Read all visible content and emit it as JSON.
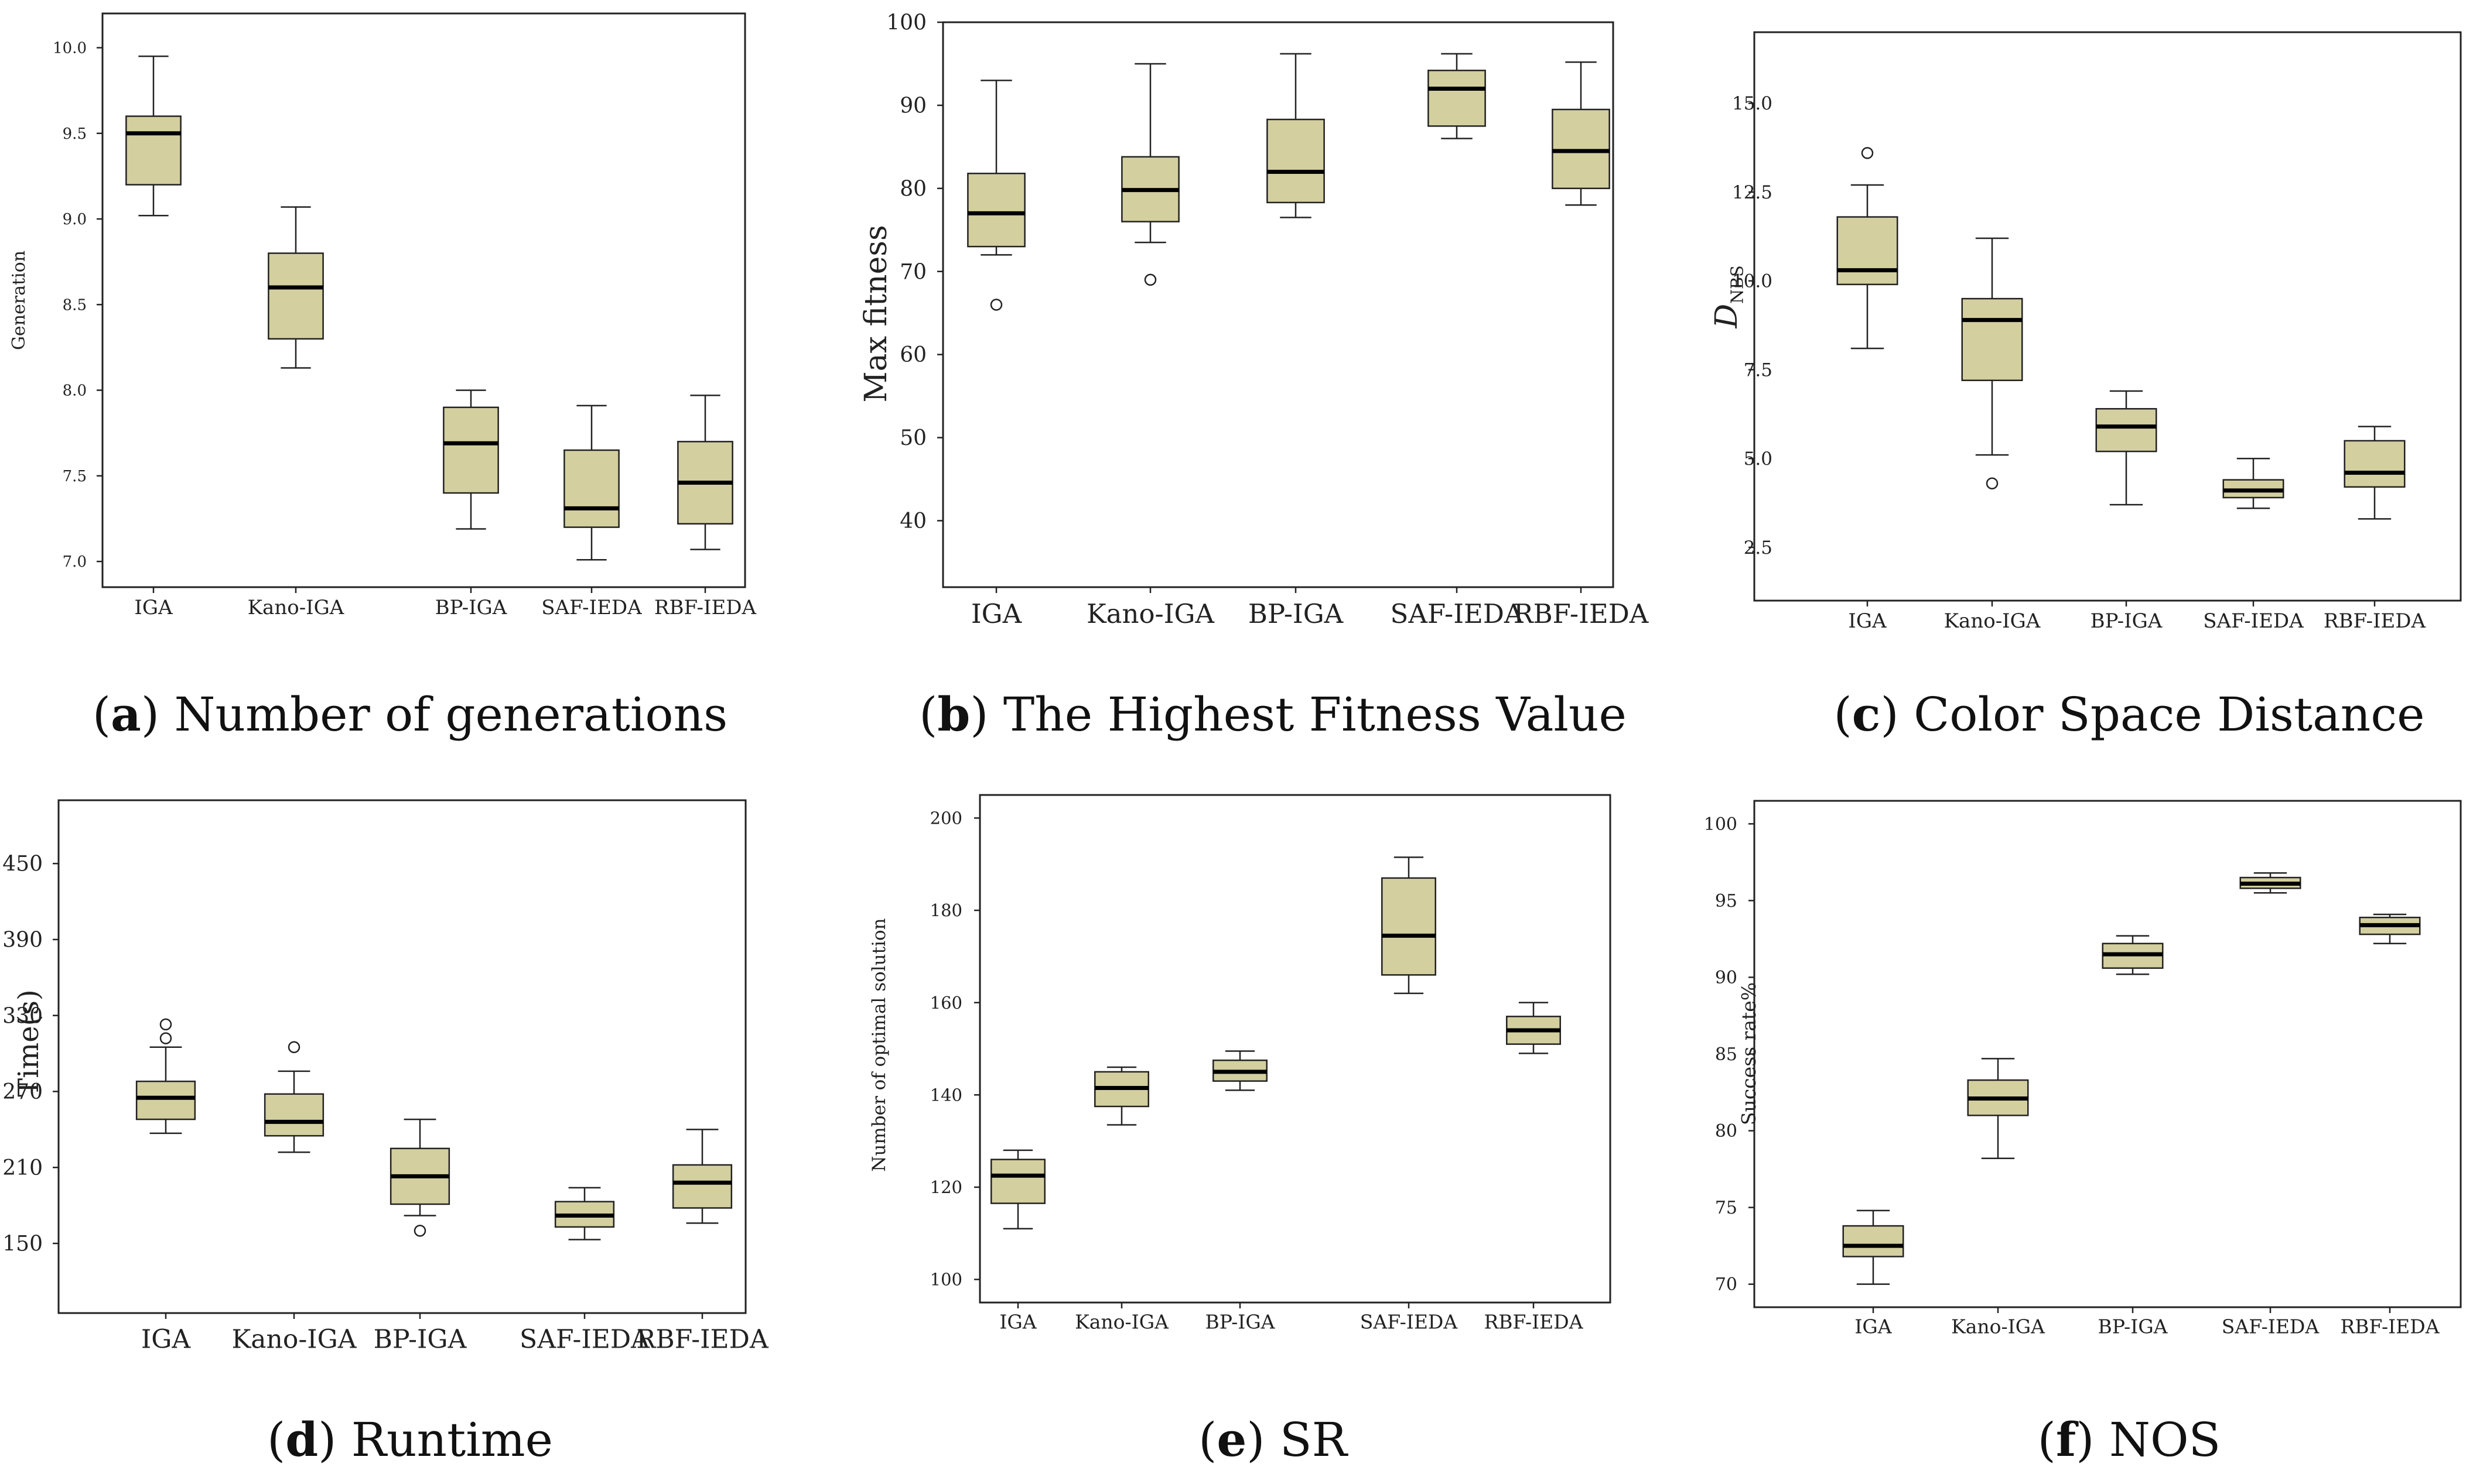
{
  "style": {
    "box_fill": "#d3cf9f",
    "line_color": "#222222"
  },
  "chart_data": [
    {
      "type": "box",
      "caption_letter": "a",
      "caption_text": "Number of generations",
      "ylabel": "Generation",
      "ylabel_italic": false,
      "ylabel_sub": "",
      "ylim": [
        6.85,
        10.2
      ],
      "yticks": [
        7.0,
        7.5,
        8.0,
        8.5,
        9.0,
        9.5,
        10.0
      ],
      "ytick_labels": [
        "7.0",
        "7.5",
        "8.0",
        "8.5",
        "9.0",
        "9.5",
        "10.0"
      ],
      "categories": [
        "IGA",
        "Kano-IGA",
        "BP-IGA",
        "SAF-IEDA",
        "RBF-IEDA"
      ],
      "boxes": [
        {
          "min": 9.02,
          "q1": 9.2,
          "median": 9.5,
          "q3": 9.6,
          "max": 9.95,
          "outliers": []
        },
        {
          "min": 8.13,
          "q1": 8.3,
          "median": 8.6,
          "q3": 8.8,
          "max": 9.07,
          "outliers": []
        },
        {
          "min": 7.19,
          "q1": 7.4,
          "median": 7.69,
          "q3": 7.9,
          "max": 8.0,
          "outliers": []
        },
        {
          "min": 7.01,
          "q1": 7.2,
          "median": 7.31,
          "q3": 7.65,
          "max": 7.91,
          "outliers": []
        },
        {
          "min": 7.07,
          "q1": 7.22,
          "median": 7.46,
          "q3": 7.7,
          "max": 7.97,
          "outliers": []
        }
      ]
    },
    {
      "type": "box",
      "caption_letter": "b",
      "caption_text": "The Highest Fitness Value",
      "ylabel": "Max fitness",
      "ylabel_italic": false,
      "ylabel_sub": "",
      "ylim": [
        32,
        100
      ],
      "yticks": [
        40,
        50,
        60,
        70,
        80,
        90,
        100
      ],
      "ytick_labels": [
        "40",
        "50",
        "60",
        "70",
        "80",
        "90",
        "100"
      ],
      "categories": [
        "IGA",
        "Kano-IGA",
        "BP-IGA",
        "SAF-IEDA",
        "RBF-IEDA"
      ],
      "boxes": [
        {
          "min": 72,
          "q1": 73,
          "median": 77,
          "q3": 81.8,
          "max": 93,
          "outliers": [
            66
          ]
        },
        {
          "min": 73.5,
          "q1": 76,
          "median": 79.8,
          "q3": 83.8,
          "max": 95,
          "outliers": [
            69
          ]
        },
        {
          "min": 76.5,
          "q1": 78.3,
          "median": 82,
          "q3": 88.3,
          "max": 96.2,
          "outliers": []
        },
        {
          "min": 86,
          "q1": 87.5,
          "median": 92,
          "q3": 94.2,
          "max": 96.2,
          "outliers": []
        },
        {
          "min": 78,
          "q1": 80,
          "median": 84.5,
          "q3": 89.5,
          "max": 95.2,
          "outliers": []
        }
      ]
    },
    {
      "type": "box",
      "caption_letter": "c",
      "caption_text": "Color Space Distance",
      "ylabel": "D",
      "ylabel_italic": true,
      "ylabel_sub": "NBS",
      "ylim": [
        1.0,
        17.0
      ],
      "yticks": [
        2.5,
        5.0,
        7.5,
        10.0,
        12.5,
        15.0
      ],
      "ytick_labels": [
        "2.5",
        "5.0",
        "7.5",
        "10.0",
        "12.5",
        "15.0"
      ],
      "categories": [
        "IGA",
        "Kano-IGA",
        "BP-IGA",
        "SAF-IEDA",
        "RBF-IEDA"
      ],
      "boxes": [
        {
          "min": 8.1,
          "q1": 9.9,
          "median": 10.3,
          "q3": 11.8,
          "max": 12.7,
          "outliers": [
            13.6
          ]
        },
        {
          "min": 5.1,
          "q1": 7.2,
          "median": 8.9,
          "q3": 9.5,
          "max": 11.2,
          "outliers": [
            4.3
          ]
        },
        {
          "min": 3.7,
          "q1": 5.2,
          "median": 5.9,
          "q3": 6.4,
          "max": 6.9,
          "outliers": []
        },
        {
          "min": 3.6,
          "q1": 3.9,
          "median": 4.1,
          "q3": 4.4,
          "max": 5.0,
          "outliers": []
        },
        {
          "min": 3.3,
          "q1": 4.2,
          "median": 4.6,
          "q3": 5.5,
          "max": 5.9,
          "outliers": []
        }
      ]
    },
    {
      "type": "box",
      "caption_letter": "d",
      "caption_text": "Runtime",
      "ylabel": "Time(s)",
      "ylabel_italic": false,
      "ylabel_sub": "",
      "ylim": [
        95,
        500
      ],
      "yticks": [
        150,
        210,
        270,
        330,
        390,
        450
      ],
      "ytick_labels": [
        "150",
        "210",
        "270",
        "330",
        "390",
        "450"
      ],
      "categories": [
        "IGA",
        "Kano-IGA",
        "BP-IGA",
        "SAF-IEDA",
        "RBF-IEDA"
      ],
      "boxes": [
        {
          "min": 237,
          "q1": 248,
          "median": 265,
          "q3": 278,
          "max": 305,
          "outliers": [
            312,
            323
          ]
        },
        {
          "min": 222,
          "q1": 235,
          "median": 246,
          "q3": 268,
          "max": 286,
          "outliers": [
            305
          ]
        },
        {
          "min": 172,
          "q1": 181,
          "median": 203,
          "q3": 225,
          "max": 248,
          "outliers": [
            160
          ]
        },
        {
          "min": 153,
          "q1": 163,
          "median": 172,
          "q3": 183,
          "max": 194,
          "outliers": []
        },
        {
          "min": 166,
          "q1": 178,
          "median": 198,
          "q3": 212,
          "max": 240,
          "outliers": []
        }
      ]
    },
    {
      "type": "box",
      "caption_letter": "e",
      "caption_text": "SR",
      "ylabel": "Number of optimal solution",
      "ylabel_italic": false,
      "ylabel_sub": "",
      "ylim": [
        95,
        205
      ],
      "yticks": [
        100,
        120,
        140,
        160,
        180,
        200
      ],
      "ytick_labels": [
        "100",
        "120",
        "140",
        "160",
        "180",
        "200"
      ],
      "categories": [
        "IGA",
        "Kano-IGA",
        "BP-IGA",
        "SAF-IEDA",
        "RBF-IEDA"
      ],
      "boxes": [
        {
          "min": 111,
          "q1": 116.5,
          "median": 122.5,
          "q3": 126,
          "max": 128,
          "outliers": []
        },
        {
          "min": 133.5,
          "q1": 137.5,
          "median": 141.5,
          "q3": 145,
          "max": 146,
          "outliers": []
        },
        {
          "min": 141,
          "q1": 143,
          "median": 145,
          "q3": 147.5,
          "max": 149.5,
          "outliers": []
        },
        {
          "min": 162,
          "q1": 166,
          "median": 174.5,
          "q3": 187,
          "max": 191.5,
          "outliers": []
        },
        {
          "min": 149,
          "q1": 151,
          "median": 154,
          "q3": 157,
          "max": 160,
          "outliers": []
        }
      ]
    },
    {
      "type": "box",
      "caption_letter": "f",
      "caption_text": "NOS",
      "ylabel": "Success rate%",
      "ylabel_italic": false,
      "ylabel_sub": "",
      "ylim": [
        68.5,
        101.5
      ],
      "yticks": [
        70,
        75,
        80,
        85,
        90,
        95,
        100
      ],
      "ytick_labels": [
        "70",
        "75",
        "80",
        "85",
        "90",
        "95",
        "100"
      ],
      "categories": [
        "IGA",
        "Kano-IGA",
        "BP-IGA",
        "SAF-IEDA",
        "RBF-IEDA"
      ],
      "boxes": [
        {
          "min": 70.0,
          "q1": 71.8,
          "median": 72.5,
          "q3": 73.8,
          "max": 74.8,
          "outliers": []
        },
        {
          "min": 78.2,
          "q1": 81.0,
          "median": 82.1,
          "q3": 83.3,
          "max": 84.7,
          "outliers": []
        },
        {
          "min": 90.2,
          "q1": 90.6,
          "median": 91.5,
          "q3": 92.2,
          "max": 92.7,
          "outliers": []
        },
        {
          "min": 95.5,
          "q1": 95.8,
          "median": 96.1,
          "q3": 96.5,
          "max": 96.8,
          "outliers": []
        },
        {
          "min": 92.2,
          "q1": 92.8,
          "median": 93.4,
          "q3": 93.9,
          "max": 94.1,
          "outliers": []
        }
      ]
    }
  ]
}
